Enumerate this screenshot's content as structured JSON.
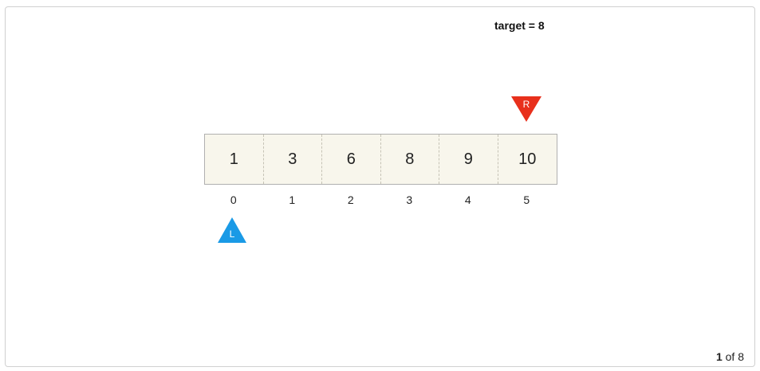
{
  "target_label": "target = 8",
  "array": {
    "values": [
      "1",
      "3",
      "6",
      "8",
      "9",
      "10"
    ],
    "indices": [
      "0",
      "1",
      "2",
      "3",
      "4",
      "5"
    ]
  },
  "pointers": {
    "left": {
      "label": "L",
      "index": 0,
      "color": "#1a9ae6"
    },
    "right": {
      "label": "R",
      "index": 5,
      "color": "#e8301c"
    }
  },
  "pager": {
    "current": "1",
    "of_text": "of 8"
  }
}
